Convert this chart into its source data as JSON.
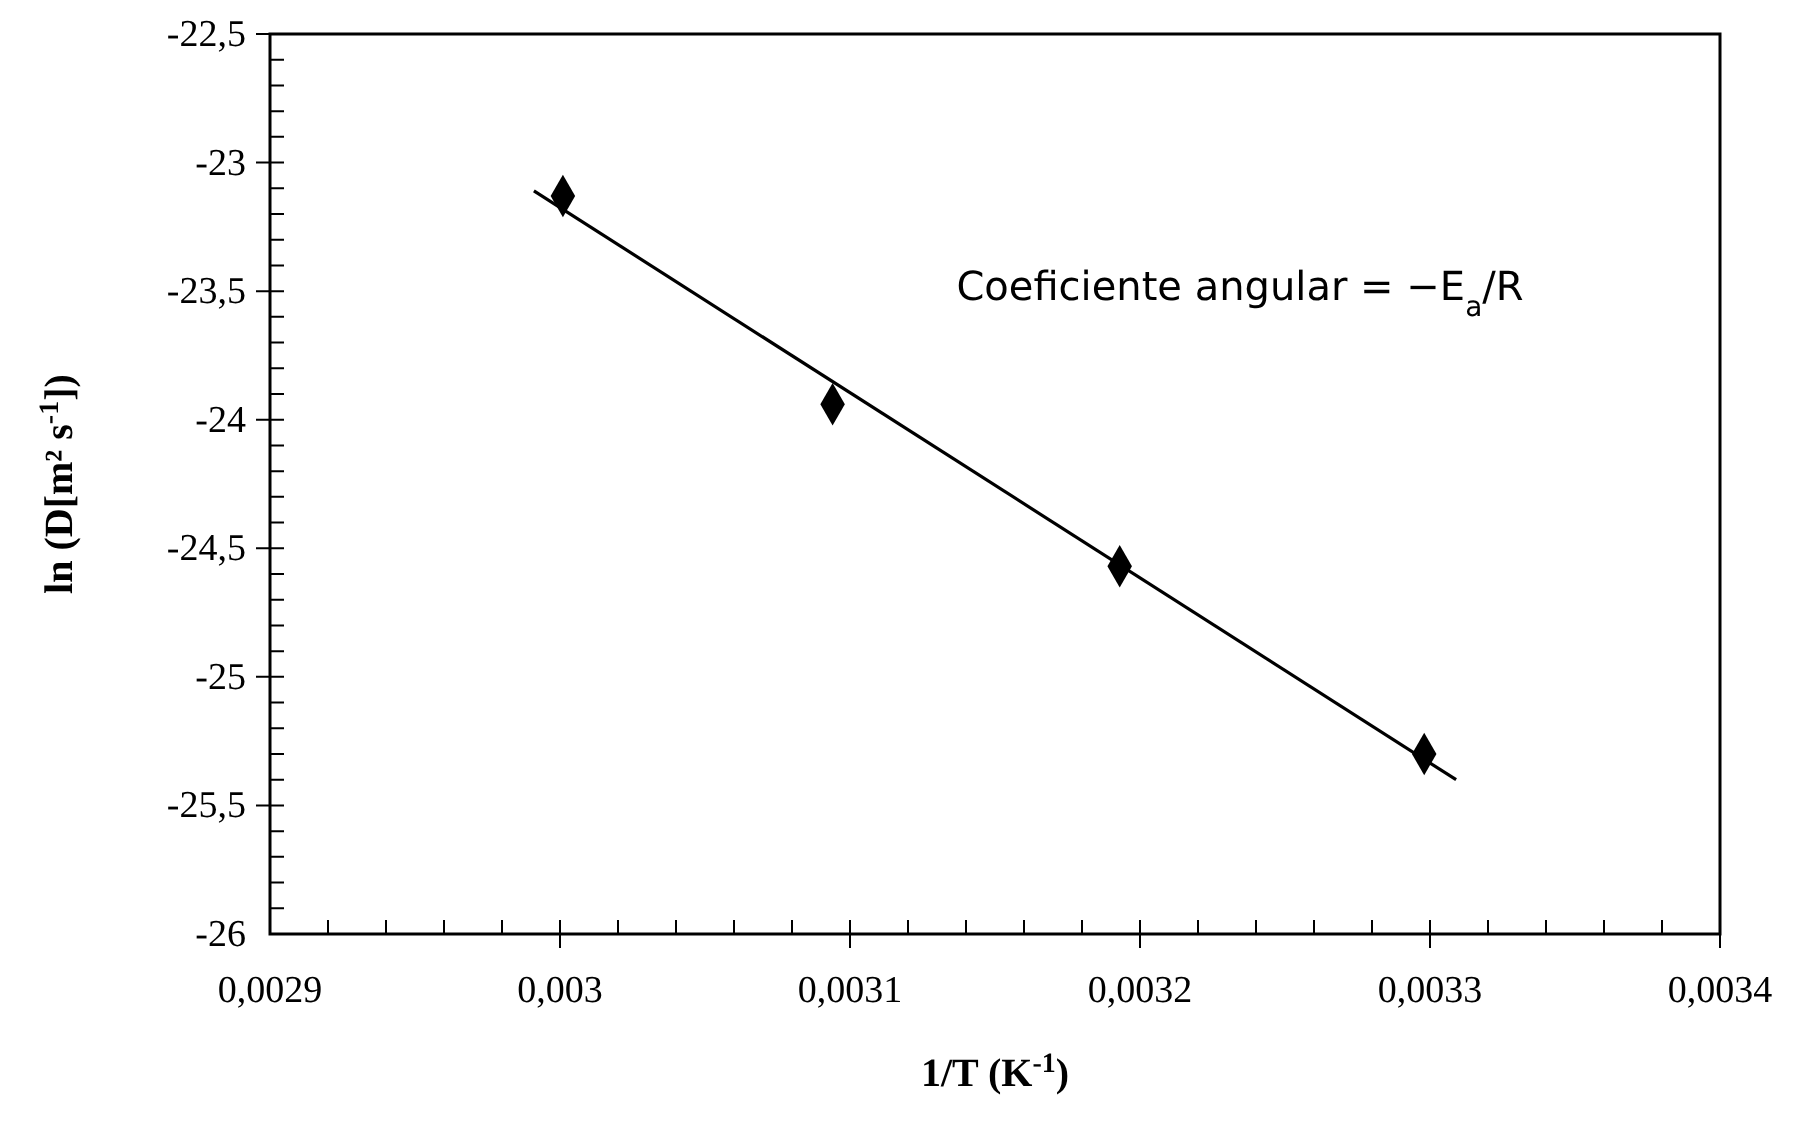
{
  "chart_data": {
    "type": "scatter",
    "xlabel": "1/T (K$^{-1}$)",
    "ylabel": "ln (D[m² s$^{-1}$])",
    "xlim": [
      0.0029,
      0.0034
    ],
    "ylim": [
      -26,
      -22.5
    ],
    "xticks": [
      {
        "value": 0.0029,
        "label": "0,0029"
      },
      {
        "value": 0.00292,
        "label": null
      },
      {
        "value": 0.00294,
        "label": null
      },
      {
        "value": 0.00296,
        "label": null
      },
      {
        "value": 0.00298,
        "label": null
      },
      {
        "value": 0.003,
        "label": "0,003"
      },
      {
        "value": 0.00302,
        "label": null
      },
      {
        "value": 0.00304,
        "label": null
      },
      {
        "value": 0.00306,
        "label": null
      },
      {
        "value": 0.00308,
        "label": null
      },
      {
        "value": 0.0031,
        "label": "0,0031"
      },
      {
        "value": 0.00312,
        "label": null
      },
      {
        "value": 0.00314,
        "label": null
      },
      {
        "value": 0.00316,
        "label": null
      },
      {
        "value": 0.00318,
        "label": null
      },
      {
        "value": 0.0032,
        "label": "0,0032"
      },
      {
        "value": 0.00322,
        "label": null
      },
      {
        "value": 0.00324,
        "label": null
      },
      {
        "value": 0.00326,
        "label": null
      },
      {
        "value": 0.00328,
        "label": null
      },
      {
        "value": 0.0033,
        "label": "0,0033"
      },
      {
        "value": 0.00332,
        "label": null
      },
      {
        "value": 0.00334,
        "label": null
      },
      {
        "value": 0.00336,
        "label": null
      },
      {
        "value": 0.00338,
        "label": null
      },
      {
        "value": 0.0034,
        "label": "0,0034"
      }
    ],
    "yticks": [
      {
        "value": -26,
        "label": "-26"
      },
      {
        "value": -25.9,
        "label": null
      },
      {
        "value": -25.8,
        "label": null
      },
      {
        "value": -25.7,
        "label": null
      },
      {
        "value": -25.6,
        "label": null
      },
      {
        "value": -25.5,
        "label": "-25,5"
      },
      {
        "value": -25.4,
        "label": null
      },
      {
        "value": -25.3,
        "label": null
      },
      {
        "value": -25.2,
        "label": null
      },
      {
        "value": -25.1,
        "label": null
      },
      {
        "value": -25,
        "label": "-25"
      },
      {
        "value": -24.9,
        "label": null
      },
      {
        "value": -24.8,
        "label": null
      },
      {
        "value": -24.7,
        "label": null
      },
      {
        "value": -24.6,
        "label": null
      },
      {
        "value": -24.5,
        "label": "-24,5"
      },
      {
        "value": -24.4,
        "label": null
      },
      {
        "value": -24.3,
        "label": null
      },
      {
        "value": -24.2,
        "label": null
      },
      {
        "value": -24.1,
        "label": null
      },
      {
        "value": -24,
        "label": "-24"
      },
      {
        "value": -23.9,
        "label": null
      },
      {
        "value": -23.8,
        "label": null
      },
      {
        "value": -23.7,
        "label": null
      },
      {
        "value": -23.6,
        "label": null
      },
      {
        "value": -23.5,
        "label": "-23,5"
      },
      {
        "value": -23.4,
        "label": null
      },
      {
        "value": -23.3,
        "label": null
      },
      {
        "value": -23.2,
        "label": null
      },
      {
        "value": -23.1,
        "label": null
      },
      {
        "value": -23,
        "label": "-23"
      },
      {
        "value": -22.9,
        "label": null
      },
      {
        "value": -22.8,
        "label": null
      },
      {
        "value": -22.7,
        "label": null
      },
      {
        "value": -22.6,
        "label": null
      },
      {
        "value": -22.5,
        "label": "-22,5"
      }
    ],
    "grid": false,
    "series": [
      {
        "color": "#000000",
        "marker": "diamond",
        "x": [
          0.003001,
          0.003094,
          0.003193,
          0.003298
        ],
        "values": [
          -23.13,
          -23.94,
          -24.57,
          -25.3
        ]
      },
      {
        "type": "line",
        "color": "#000000",
        "marker": "none",
        "line_style": "solid",
        "x": [
          0.002991,
          0.003309
        ],
        "values": [
          -23.11,
          -25.4
        ]
      }
    ],
    "annotations": [
      "Coeficiente angular = −E$_{a}$/R"
    ]
  }
}
